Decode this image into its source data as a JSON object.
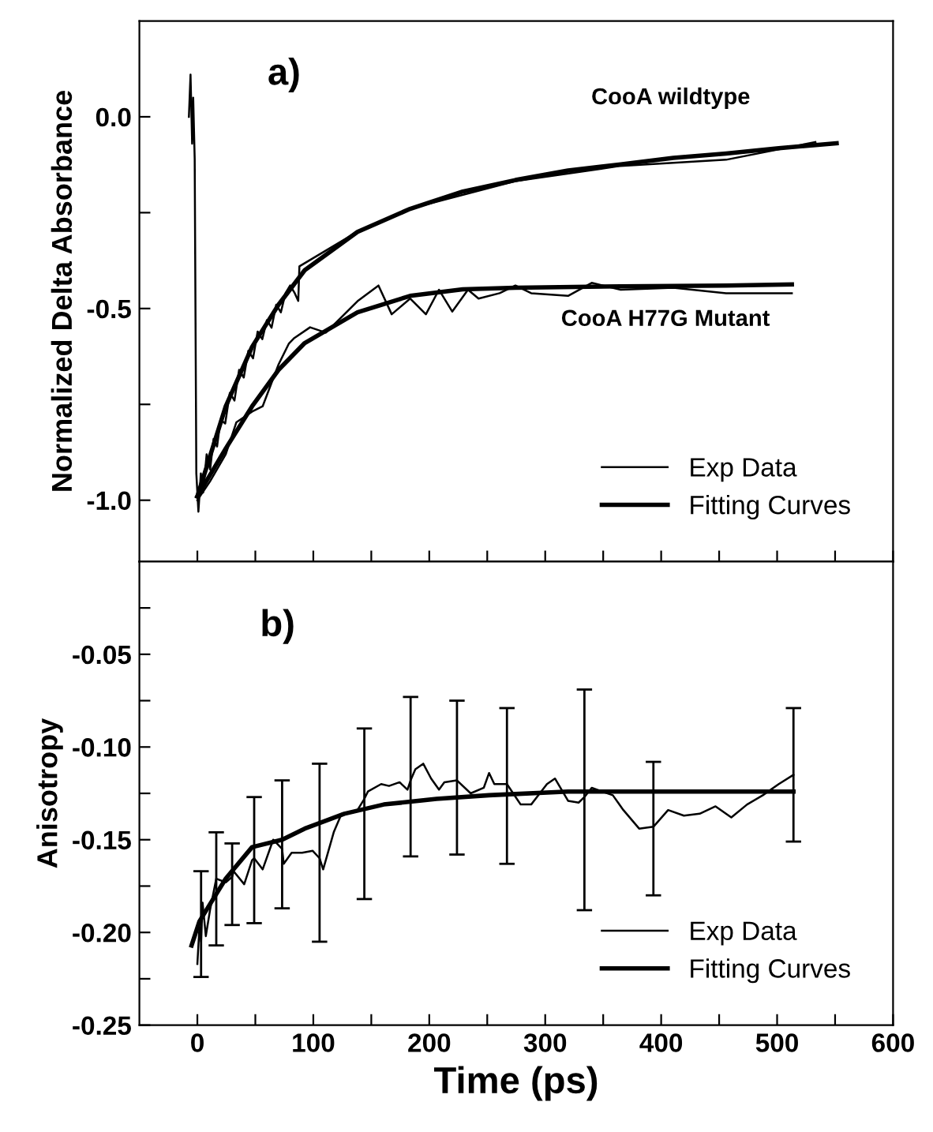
{
  "chart_data": [
    {
      "type": "line",
      "ylabel": "Normalized Delta Absorbance",
      "xlim": [
        -50,
        600
      ],
      "ylim": [
        -1.16,
        0.25
      ],
      "xticks": [
        0,
        {
          "value": 50,
          "label": null
        },
        100,
        {
          "value": 150,
          "label": null
        },
        200,
        {
          "value": 250,
          "label": null
        },
        300,
        {
          "value": 350,
          "label": null
        },
        400,
        {
          "value": 450,
          "label": null
        },
        500,
        {
          "value": 550,
          "label": null
        },
        600
      ],
      "yticks": [
        {
          "value": -1.0,
          "label": "-1.0"
        },
        {
          "value": -0.75,
          "label": null
        },
        {
          "value": -0.5,
          "label": "-0.5"
        },
        {
          "value": -0.25,
          "label": null
        },
        {
          "value": 0,
          "label": "0.0"
        }
      ],
      "tick_labels": "y",
      "legend": "bottom right",
      "grid": false,
      "marker": "none",
      "line_style": "solid",
      "annotations": [
        "a)",
        "CooA wildtype",
        "CooA H77G Mutant"
      ],
      "series": [
        {
          "name": "Exp Data",
          "color": "#000000",
          "x": [
            -7.3,
            -5.9,
            -4.5,
            -3.6,
            -2.3,
            -0.9,
            0.9,
            3,
            5,
            8,
            11,
            14,
            17,
            20,
            24,
            28,
            32,
            36,
            40,
            44,
            48,
            52,
            56,
            60,
            64,
            68,
            72,
            76,
            80,
            84,
            87,
            88,
            138,
            183,
            274,
            365,
            456,
            533
          ],
          "values": [
            0.0,
            0.11,
            -0.07,
            0.05,
            -0.11,
            -0.93,
            -1.03,
            -0.93,
            -0.98,
            -0.88,
            -0.92,
            -0.84,
            -0.86,
            -0.79,
            -0.8,
            -0.72,
            -0.74,
            -0.66,
            -0.68,
            -0.61,
            -0.63,
            -0.56,
            -0.58,
            -0.53,
            -0.55,
            -0.49,
            -0.51,
            -0.46,
            -0.44,
            -0.46,
            -0.48,
            -0.39,
            -0.3,
            -0.24,
            -0.168,
            -0.128,
            -0.112,
            -0.066
          ]
        },
        {
          "name": "Fitting Curves",
          "color": "#000000",
          "x": [
            0,
            24.5,
            47.2,
            70,
            92.6,
            138.1,
            183.5,
            228.9,
            274.3,
            319.7,
            365.1,
            410.5,
            456,
            501.4,
            551.3
          ],
          "values": [
            -0.99,
            -0.755,
            -0.6,
            -0.49,
            -0.4,
            -0.3,
            -0.24,
            -0.195,
            -0.165,
            -0.14,
            -0.124,
            -0.107,
            -0.096,
            -0.082,
            -0.069
          ]
        },
        {
          "color": "#000000",
          "x": [
            0,
            10.9,
            24.5,
            33.6,
            47.2,
            56.3,
            70.0,
            79.0,
            83.6,
            97.2,
            110.8,
            124.4,
            138.1,
            156.2,
            167.6,
            183.5,
            197.1,
            208.4,
            219.8,
            233.4,
            242.5,
            260.7,
            274.3,
            287.9,
            319.7,
            340.1,
            365.1,
            410.5,
            456.0,
            512.7
          ],
          "values": [
            -1.0,
            -0.951,
            -0.88,
            -0.797,
            -0.769,
            -0.755,
            -0.646,
            -0.591,
            -0.577,
            -0.549,
            -0.563,
            -0.522,
            -0.481,
            -0.44,
            -0.515,
            -0.474,
            -0.515,
            -0.451,
            -0.508,
            -0.451,
            -0.474,
            -0.46,
            -0.44,
            -0.46,
            -0.467,
            -0.433,
            -0.451,
            -0.446,
            -0.46,
            -0.46
          ]
        },
        {
          "color": "#000000",
          "x": [
            0,
            24.5,
            47.2,
            70,
            92.6,
            138.1,
            183.5,
            228.9,
            274.3,
            365.1,
            456,
            512.7
          ],
          "values": [
            -0.99,
            -0.865,
            -0.755,
            -0.66,
            -0.59,
            -0.51,
            -0.467,
            -0.45,
            -0.446,
            -0.442,
            -0.44,
            -0.437
          ]
        }
      ]
    },
    {
      "type": "line",
      "xlabel": "Time (ps)",
      "ylabel": "Anisotropy",
      "xlim": [
        -50,
        600
      ],
      "ylim": [
        -0.25,
        0
      ],
      "xticks": [
        0,
        {
          "value": 50,
          "label": null
        },
        100,
        {
          "value": 150,
          "label": null
        },
        200,
        {
          "value": 250,
          "label": null
        },
        300,
        {
          "value": 350,
          "label": null
        },
        400,
        {
          "value": 450,
          "label": null
        },
        500,
        {
          "value": 550,
          "label": null
        },
        600
      ],
      "yticks": [
        {
          "value": -0.25,
          "label": "-0.25"
        },
        {
          "value": -0.225,
          "label": null
        },
        {
          "value": -0.2,
          "label": "-0.20"
        },
        {
          "value": -0.175,
          "label": null
        },
        {
          "value": -0.15,
          "label": "-0.15"
        },
        {
          "value": -0.125,
          "label": null
        },
        {
          "value": -0.1,
          "label": "-0.10"
        },
        {
          "value": -0.075,
          "label": null
        },
        {
          "value": -0.05,
          "label": "-0.05"
        },
        {
          "value": -0.025,
          "label": null
        }
      ],
      "legend": "bottom right",
      "grid": false,
      "marker": "none",
      "line_style": "solid",
      "annotations": [
        "b)"
      ],
      "series": [
        {
          "name": "Exp Data",
          "color": "#000000",
          "x": [
            0,
            1.8,
            3.2,
            4.5,
            7.3,
            10.9,
            16.3,
            24.5,
            30.0,
            31.3,
            40.4,
            47.2,
            49.0,
            56.3,
            65.4,
            73.1,
            74.5,
            81.3,
            90.4,
            99.5,
            105.4,
            108.5,
            117.6,
            124.4,
            138.1,
            144.0,
            147.1,
            158.5,
            165.3,
            174.4,
            181.2,
            183.9,
            188.0,
            194.8,
            201.6,
            208.4,
            213.0,
            223.9,
            235.7,
            247.0,
            251.6,
            256.1,
            267.0,
            278.8,
            287.9,
            301.5,
            308.4,
            319.7,
            328.8,
            333.8,
            340.1,
            358.3,
            367.4,
            381.0,
            393.3,
            406.0,
            419.6,
            433.2,
            446.9,
            460.5,
            474.1,
            487.7,
            501.4,
            514.1
          ],
          "values": [
            -0.217,
            -0.197,
            -0.205,
            -0.184,
            -0.202,
            -0.188,
            -0.171,
            -0.173,
            -0.17,
            -0.167,
            -0.174,
            -0.161,
            -0.16,
            -0.166,
            -0.15,
            -0.155,
            -0.163,
            -0.157,
            -0.157,
            -0.156,
            -0.16,
            -0.166,
            -0.146,
            -0.136,
            -0.134,
            -0.128,
            -0.124,
            -0.12,
            -0.121,
            -0.119,
            -0.123,
            -0.118,
            -0.112,
            -0.109,
            -0.117,
            -0.123,
            -0.119,
            -0.118,
            -0.125,
            -0.122,
            -0.114,
            -0.12,
            -0.12,
            -0.131,
            -0.131,
            -0.12,
            -0.117,
            -0.129,
            -0.13,
            -0.127,
            -0.122,
            -0.126,
            -0.134,
            -0.144,
            -0.143,
            -0.134,
            -0.137,
            -0.136,
            -0.132,
            -0.138,
            -0.131,
            -0.126,
            -0.12,
            -0.115
          ],
          "errors": [
            null,
            null,
            [
              -0.224,
              -0.167
            ],
            null,
            null,
            null,
            [
              -0.207,
              -0.146
            ],
            null,
            [
              -0.196,
              -0.152
            ],
            null,
            null,
            null,
            [
              -0.195,
              -0.127
            ],
            null,
            null,
            [
              -0.187,
              -0.118
            ],
            null,
            null,
            null,
            null,
            [
              -0.205,
              -0.109
            ],
            null,
            null,
            null,
            null,
            [
              -0.182,
              -0.09
            ],
            null,
            null,
            null,
            null,
            null,
            [
              -0.159,
              -0.073
            ],
            null,
            null,
            null,
            null,
            null,
            [
              -0.158,
              -0.075
            ],
            null,
            null,
            null,
            null,
            [
              -0.163,
              -0.079
            ],
            null,
            null,
            null,
            null,
            null,
            null,
            [
              -0.188,
              -0.069
            ],
            null,
            null,
            null,
            null,
            [
              -0.18,
              -0.108
            ],
            null,
            null,
            null,
            null,
            null,
            null,
            null,
            null,
            [
              -0.151,
              -0.079
            ]
          ]
        },
        {
          "name": "Fitting Curves",
          "color": "#000000",
          "x": [
            -5,
            1.8,
            24.5,
            47.2,
            73.1,
            92.6,
            105.4,
            126.7,
            160.8,
            206.2,
            251.6,
            319.7,
            410.5,
            514.1
          ],
          "values": [
            -0.207,
            -0.194,
            -0.171,
            -0.154,
            -0.15,
            -0.144,
            -0.141,
            -0.136,
            -0.131,
            -0.128,
            -0.126,
            -0.124,
            -0.124,
            -0.124
          ]
        }
      ]
    }
  ]
}
